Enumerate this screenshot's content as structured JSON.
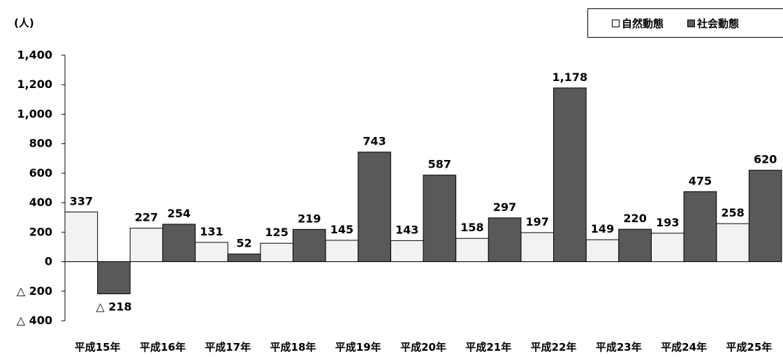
{
  "unit_label": "(人)",
  "colors": {
    "natural": "#f2f2f2",
    "social": "#595959",
    "border": "#000000"
  },
  "chart_data": {
    "type": "bar",
    "categories": [
      "平成15年",
      "平成16年",
      "平成17年",
      "平成18年",
      "平成19年",
      "平成20年",
      "平成21年",
      "平成22年",
      "平成23年",
      "平成24年",
      "平成25年"
    ],
    "series": [
      {
        "name": "自然動態",
        "values": [
          337,
          227,
          131,
          125,
          145,
          143,
          158,
          197,
          149,
          193,
          258
        ],
        "labels": [
          "337",
          "227",
          "131",
          "125",
          "145",
          "143",
          "158",
          "197",
          "149",
          "193",
          "258"
        ]
      },
      {
        "name": "社会動態",
        "values": [
          -218,
          254,
          52,
          219,
          743,
          587,
          297,
          1178,
          220,
          475,
          620
        ],
        "labels": [
          "△ 218",
          "254",
          "52",
          "219",
          "743",
          "587",
          "297",
          "1,178",
          "220",
          "475",
          "620"
        ]
      }
    ],
    "ylim": [
      -400,
      1400
    ],
    "yticks": [
      1400,
      1200,
      1000,
      800,
      600,
      400,
      200,
      0,
      -200,
      -400
    ],
    "ytick_labels": [
      "1,400",
      "1,200",
      "1,000",
      "800",
      "600",
      "400",
      "200",
      "0",
      "△ 200",
      "△ 400"
    ],
    "legend_position": "top-right",
    "grid": false
  }
}
